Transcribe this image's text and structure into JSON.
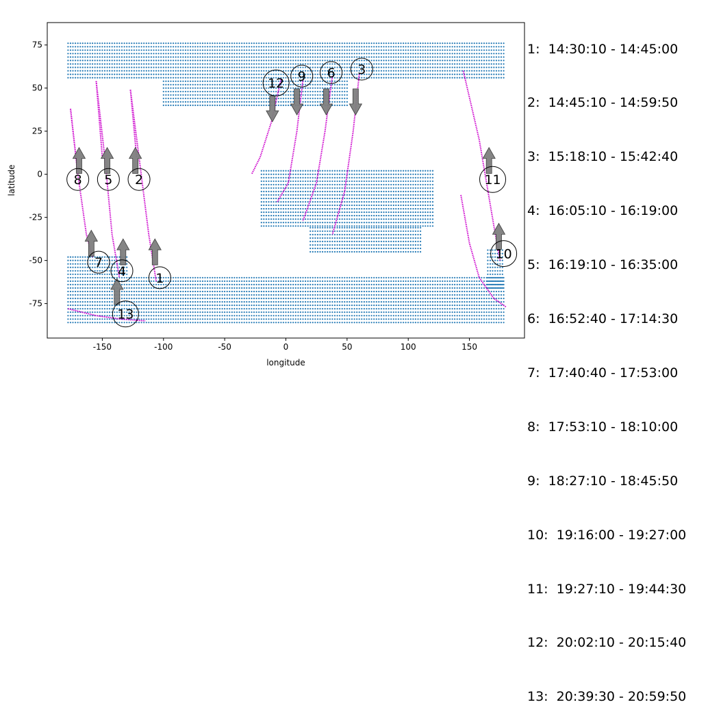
{
  "chart_data": {
    "type": "scatter",
    "xlabel": "longitude",
    "ylabel": "latitude",
    "xlim": [
      -195,
      195
    ],
    "ylim": [
      -95,
      88
    ],
    "xticks": [
      -150,
      -100,
      -50,
      0,
      50,
      100,
      150
    ],
    "yticks": [
      -75,
      -50,
      -25,
      0,
      25,
      50,
      75
    ],
    "colors": {
      "land": "#1f77b4",
      "track": "#cc00cc",
      "arrow": "#7f7f7f"
    },
    "land_regions": [
      {
        "lon": [
          -178,
          178
        ],
        "lat": [
          56,
          76
        ],
        "step": 2
      },
      {
        "lon": [
          -100,
          50
        ],
        "lat": [
          40,
          56
        ],
        "step": 2
      },
      {
        "lon": [
          -20,
          120
        ],
        "lat": [
          -30,
          2
        ],
        "step": 2
      },
      {
        "lon": [
          20,
          110
        ],
        "lat": [
          -45,
          -30
        ],
        "step": 2
      },
      {
        "lon": [
          -178,
          178
        ],
        "lat": [
          -86,
          -60
        ],
        "step": 2
      },
      {
        "lon": [
          -178,
          -130
        ],
        "lat": [
          -58,
          -48
        ],
        "step": 2
      },
      {
        "lon": [
          165,
          178
        ],
        "lat": [
          -66,
          -44
        ],
        "step": 2
      }
    ],
    "tracks": [
      {
        "label": "1",
        "lon": [
          -127,
          -120,
          -112,
          -106
        ],
        "lat": [
          49,
          10,
          -35,
          -62
        ],
        "label_pos": [
          -103,
          -60
        ],
        "arrow": "up",
        "arrow_at": [
          -107,
          -45
        ]
      },
      {
        "label": "2",
        "lon": [
          -127,
          -122
        ],
        "lat": [
          49,
          10
        ],
        "label_pos": [
          -120,
          -3
        ],
        "arrow": "up",
        "arrow_at": [
          -123,
          8
        ]
      },
      {
        "label": "3",
        "lon": [
          60,
          55,
          48,
          38
        ],
        "lat": [
          58,
          25,
          -10,
          -35
        ],
        "label_pos": [
          62,
          61
        ],
        "arrow": "down",
        "arrow_at": [
          57,
          42
        ]
      },
      {
        "label": "4",
        "lon": [
          -155,
          -148,
          -142,
          -136
        ],
        "lat": [
          54,
          10,
          -35,
          -60
        ],
        "label_pos": [
          -134,
          -56
        ],
        "arrow": "up",
        "arrow_at": [
          -133,
          -45
        ]
      },
      {
        "label": "5",
        "lon": [
          -155,
          -150
        ],
        "lat": [
          54,
          10
        ],
        "label_pos": [
          -145,
          -3
        ],
        "arrow": "up",
        "arrow_at": [
          -146,
          8
        ]
      },
      {
        "label": "6",
        "lon": [
          38,
          32,
          25,
          14
        ],
        "lat": [
          57,
          25,
          -5,
          -27
        ],
        "label_pos": [
          37,
          59
        ],
        "arrow": "down",
        "arrow_at": [
          33,
          42
        ]
      },
      {
        "label": "7",
        "lon": [
          -176,
          -170,
          -163,
          -158
        ],
        "lat": [
          38,
          0,
          -35,
          -48
        ],
        "label_pos": [
          -153,
          -51
        ],
        "arrow": "up",
        "arrow_at": [
          -159,
          -40
        ]
      },
      {
        "label": "8",
        "lon": [
          -176,
          -170
        ],
        "lat": [
          38,
          0
        ],
        "label_pos": [
          -170,
          -3
        ],
        "arrow": "up",
        "arrow_at": [
          -169,
          8
        ]
      },
      {
        "label": "9",
        "lon": [
          14,
          9,
          2,
          -7
        ],
        "lat": [
          55,
          25,
          -5,
          -16
        ],
        "label_pos": [
          13,
          57
        ],
        "arrow": "down",
        "arrow_at": [
          9,
          42
        ]
      },
      {
        "label": "10",
        "lon": [
          143,
          150,
          158,
          170,
          180
        ],
        "lat": [
          -12,
          -40,
          -60,
          -72,
          -77
        ],
        "label_pos": [
          178,
          -46
        ],
        "arrow": "up",
        "arrow_at": [
          174,
          -36
        ]
      },
      {
        "label": "11",
        "lon": [
          145,
          158,
          170,
          175
        ],
        "lat": [
          60,
          20,
          -30,
          -50
        ],
        "label_pos": [
          169,
          -3
        ],
        "arrow": "up",
        "arrow_at": [
          166,
          8
        ]
      },
      {
        "label": "12",
        "lon": [
          -4,
          -12,
          -21,
          -28
        ],
        "lat": [
          55,
          30,
          10,
          0
        ],
        "label_pos": [
          -8,
          53
        ],
        "arrow": "down",
        "arrow_at": [
          -11,
          38
        ]
      },
      {
        "label": "13",
        "lon": [
          -178,
          -155,
          -135,
          -115
        ],
        "lat": [
          -78,
          -82,
          -84,
          -85
        ],
        "label_pos": [
          -131,
          -81
        ],
        "arrow": "up",
        "arrow_at": [
          -138,
          -68
        ]
      }
    ]
  },
  "legend": [
    "1:  14:30:10 - 14:45:00",
    "2:  14:45:10 - 14:59:50",
    "3:  15:18:10 - 15:42:40",
    "4:  16:05:10 - 16:19:00",
    "5:  16:19:10 - 16:35:00",
    "6:  16:52:40 - 17:14:30",
    "7:  17:40:40 - 17:53:00",
    "8:  17:53:10 - 18:10:00",
    "9:  18:27:10 - 18:45:50",
    "10:  19:16:00 - 19:27:00",
    "11:  19:27:10 - 19:44:30",
    "12:  20:02:10 - 20:15:40",
    "13:  20:39:30 - 20:59:50"
  ]
}
